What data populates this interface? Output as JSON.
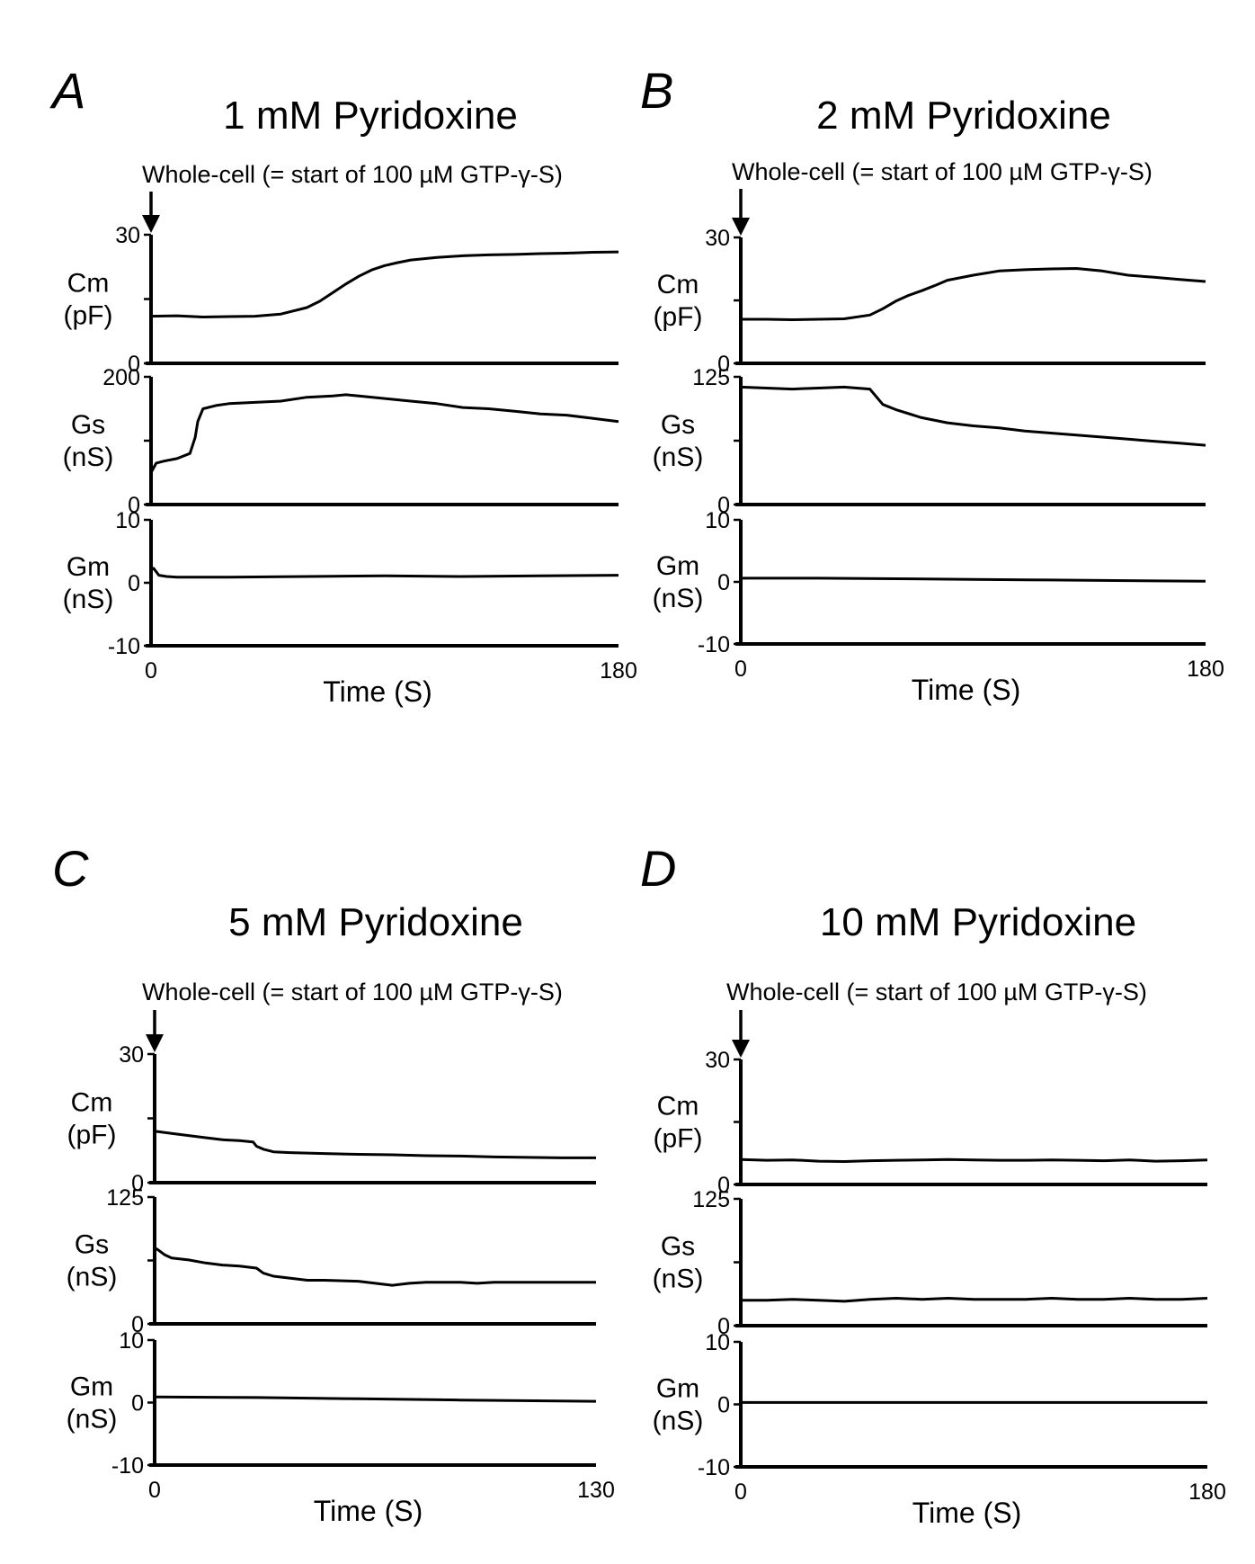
{
  "stimulus_label": "Whole-cell (= start of 100 µM GTP-γ-S)",
  "time_axis_label": "Time (S)",
  "chart_data": [
    {
      "type": "line",
      "panel_letter": "A",
      "title": "1 mM Pyridoxine",
      "xlabel": "Time (S)",
      "xlim": [
        0,
        180
      ],
      "x_tick_labels": [
        "0",
        "180"
      ],
      "arrow_at_x": 0,
      "subplots": [
        {
          "ylabel": "Cm",
          "yunit": "(pF)",
          "ylim": [
            0,
            30
          ],
          "y_tick_labels": [
            "0",
            "30"
          ],
          "series": [
            {
              "x": [
                0,
                10,
                20,
                30,
                40,
                50,
                60,
                65,
                70,
                75,
                80,
                85,
                90,
                95,
                100,
                110,
                120,
                130,
                140,
                150,
                160,
                170,
                180
              ],
              "values": [
                11,
                11.1,
                10.8,
                10.9,
                11,
                11.5,
                13,
                14.5,
                16.5,
                18.5,
                20.3,
                21.8,
                22.8,
                23.5,
                24.1,
                24.7,
                25.1,
                25.3,
                25.4,
                25.6,
                25.7,
                25.9,
                26
              ]
            }
          ]
        },
        {
          "ylabel": "Gs",
          "yunit": "(nS)",
          "ylim": [
            0,
            200
          ],
          "y_tick_labels": [
            "0",
            "200"
          ],
          "series": [
            {
              "x": [
                0,
                2,
                5,
                10,
                15,
                17,
                18,
                20,
                25,
                30,
                40,
                50,
                60,
                70,
                75,
                80,
                90,
                100,
                110,
                120,
                130,
                140,
                150,
                160,
                170,
                180
              ],
              "values": [
                50,
                65,
                68,
                72,
                80,
                105,
                130,
                150,
                155,
                158,
                160,
                162,
                168,
                170,
                172,
                170,
                166,
                162,
                158,
                152,
                150,
                146,
                142,
                140,
                135,
                130
              ]
            }
          ]
        },
        {
          "ylabel": "Gm",
          "yunit": "(nS)",
          "ylim": [
            -10,
            10
          ],
          "y_tick_labels": [
            "-10",
            "0",
            "10"
          ],
          "series": [
            {
              "x": [
                0,
                1,
                3,
                6,
                10,
                30,
                60,
                90,
                120,
                150,
                180
              ],
              "values": [
                2,
                2.3,
                1.2,
                1,
                0.9,
                0.9,
                1,
                1.1,
                1,
                1.1,
                1.2
              ]
            }
          ]
        }
      ]
    },
    {
      "type": "line",
      "panel_letter": "B",
      "title": "2 mM Pyridoxine",
      "xlabel": "Time (S)",
      "xlim": [
        0,
        180
      ],
      "x_tick_labels": [
        "0",
        "180"
      ],
      "arrow_at_x": 0,
      "subplots": [
        {
          "ylabel": "Cm",
          "yunit": "(pF)",
          "ylim": [
            0,
            30
          ],
          "y_tick_labels": [
            "0",
            "30"
          ],
          "series": [
            {
              "x": [
                0,
                10,
                20,
                30,
                40,
                50,
                55,
                60,
                65,
                70,
                75,
                80,
                90,
                100,
                110,
                120,
                130,
                140,
                150,
                160,
                170,
                180
              ],
              "values": [
                10.5,
                10.5,
                10.4,
                10.5,
                10.6,
                11.5,
                13,
                14.8,
                16.2,
                17.3,
                18.5,
                19.8,
                21,
                22,
                22.3,
                22.5,
                22.6,
                22,
                21,
                20.5,
                20,
                19.5
              ]
            }
          ]
        },
        {
          "ylabel": "Gs",
          "yunit": "(nS)",
          "ylim": [
            0,
            125
          ],
          "y_tick_labels": [
            "0",
            "125"
          ],
          "series": [
            {
              "x": [
                0,
                10,
                20,
                30,
                40,
                50,
                55,
                60,
                70,
                80,
                90,
                100,
                110,
                120,
                130,
                140,
                150,
                160,
                170,
                180
              ],
              "values": [
                115,
                114,
                113,
                114,
                115,
                113,
                98,
                93,
                85,
                80,
                77,
                75,
                72,
                70,
                68,
                66,
                64,
                62,
                60,
                58
              ]
            }
          ]
        },
        {
          "ylabel": "Gm",
          "yunit": "(nS)",
          "ylim": [
            -10,
            10
          ],
          "y_tick_labels": [
            "-10",
            "0",
            "10"
          ],
          "series": [
            {
              "x": [
                0,
                30,
                60,
                90,
                120,
                150,
                180
              ],
              "values": [
                0.6,
                0.6,
                0.5,
                0.4,
                0.3,
                0.2,
                0.1
              ]
            }
          ]
        }
      ]
    },
    {
      "type": "line",
      "panel_letter": "C",
      "title": "5 mM Pyridoxine",
      "xlabel": "Time (S)",
      "xlim": [
        0,
        130
      ],
      "x_tick_labels": [
        "0",
        "130"
      ],
      "arrow_at_x": 0,
      "subplots": [
        {
          "ylabel": "Cm",
          "yunit": "(pF)",
          "ylim": [
            0,
            30
          ],
          "y_tick_labels": [
            "0",
            "30"
          ],
          "series": [
            {
              "x": [
                0,
                5,
                10,
                15,
                20,
                25,
                29,
                30,
                32,
                35,
                40,
                50,
                60,
                70,
                80,
                90,
                100,
                110,
                120,
                130
              ],
              "values": [
                12,
                11.5,
                11,
                10.5,
                10,
                9.8,
                9.5,
                8.5,
                7.8,
                7.2,
                7,
                6.8,
                6.6,
                6.5,
                6.3,
                6.2,
                6,
                5.9,
                5.8,
                5.8
              ]
            }
          ]
        },
        {
          "ylabel": "Gs",
          "yunit": "(nS)",
          "ylim": [
            0,
            125
          ],
          "y_tick_labels": [
            "0",
            "125"
          ],
          "series": [
            {
              "x": [
                0,
                1,
                3,
                5,
                10,
                15,
                20,
                25,
                30,
                32,
                35,
                40,
                45,
                50,
                60,
                65,
                70,
                75,
                80,
                90,
                95,
                100,
                110,
                120,
                130
              ],
              "values": [
                75,
                73,
                68,
                65,
                63,
                60,
                58,
                57,
                55,
                50,
                47,
                45,
                43,
                43,
                42,
                40,
                38,
                40,
                41,
                41,
                40,
                41,
                41,
                41,
                41
              ]
            }
          ]
        },
        {
          "ylabel": "Gm",
          "yunit": "(nS)",
          "ylim": [
            -10,
            10
          ],
          "y_tick_labels": [
            "-10",
            "0",
            "10"
          ],
          "series": [
            {
              "x": [
                0,
                30,
                60,
                90,
                130
              ],
              "values": [
                0.9,
                0.8,
                0.6,
                0.4,
                0.2
              ]
            }
          ]
        }
      ]
    },
    {
      "type": "line",
      "panel_letter": "D",
      "title": "10 mM Pyridoxine",
      "xlabel": "Time (S)",
      "xlim": [
        0,
        180
      ],
      "x_tick_labels": [
        "0",
        "180"
      ],
      "arrow_at_x": 0,
      "subplots": [
        {
          "ylabel": "Cm",
          "yunit": "(pF)",
          "ylim": [
            0,
            30
          ],
          "y_tick_labels": [
            "0",
            "30"
          ],
          "series": [
            {
              "x": [
                0,
                10,
                20,
                30,
                40,
                50,
                60,
                70,
                80,
                90,
                100,
                110,
                120,
                130,
                140,
                150,
                160,
                170,
                180
              ],
              "values": [
                6,
                5.8,
                5.9,
                5.6,
                5.5,
                5.7,
                5.8,
                5.9,
                6,
                5.9,
                5.8,
                5.8,
                5.9,
                5.8,
                5.7,
                5.9,
                5.6,
                5.7,
                5.9
              ]
            }
          ]
        },
        {
          "ylabel": "Gs",
          "yunit": "(nS)",
          "ylim": [
            0,
            125
          ],
          "y_tick_labels": [
            "0",
            "125"
          ],
          "series": [
            {
              "x": [
                0,
                10,
                20,
                30,
                40,
                50,
                60,
                70,
                80,
                90,
                100,
                110,
                120,
                130,
                140,
                150,
                160,
                170,
                180
              ],
              "values": [
                25,
                25,
                26,
                25,
                24,
                26,
                27,
                26,
                27,
                26,
                26,
                26,
                27,
                26,
                26,
                27,
                26,
                26,
                27
              ]
            }
          ]
        },
        {
          "ylabel": "Gm",
          "yunit": "(nS)",
          "ylim": [
            -10,
            10
          ],
          "y_tick_labels": [
            "-10",
            "0",
            "10"
          ],
          "series": [
            {
              "x": [
                0,
                60,
                120,
                180
              ],
              "values": [
                0.3,
                0.3,
                0.3,
                0.3
              ]
            }
          ]
        }
      ]
    }
  ]
}
